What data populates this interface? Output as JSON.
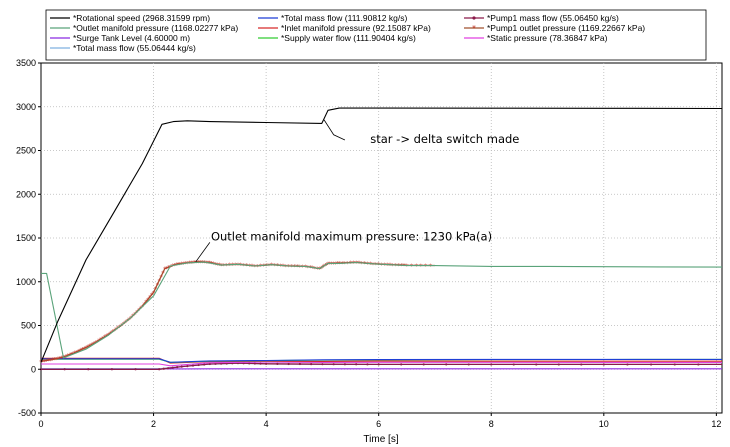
{
  "chart_data": {
    "type": "line",
    "xlabel": "Time [s]",
    "ylabel": "",
    "xlim": [
      0,
      12.1
    ],
    "ylim": [
      -500,
      3500
    ],
    "x_ticks": [
      0,
      2,
      4,
      6,
      8,
      10,
      12
    ],
    "y_ticks": [
      -500,
      0,
      500,
      1000,
      1500,
      2000,
      2500,
      3000,
      3500
    ],
    "grid": true,
    "legend_placement": "top",
    "legend": [
      {
        "label": "*Rotational speed (2968.31599 rpm)",
        "color": "#000000",
        "marker": "none"
      },
      {
        "label": "*Total mass flow (111.90812 kg/s)",
        "color": "#1f3fd6",
        "marker": "none"
      },
      {
        "label": "*Pump1 mass flow (55.06450 kg/s)",
        "color": "#8b1a4a",
        "marker": "dot"
      },
      {
        "label": "*Outlet manifold pressure (1168.02277 kPa)",
        "color": "#5aa37a",
        "marker": "none"
      },
      {
        "label": "*Inlet manifold pressure (92.15087 kPa)",
        "color": "#d62a2a",
        "marker": "none"
      },
      {
        "label": "*Pump1 outlet pressure (1169.22667 kPa)",
        "color": "#a0522d",
        "marker": "star"
      },
      {
        "label": "*Surge Tank Level (4.60000 m)",
        "color": "#8a2be2",
        "marker": "none"
      },
      {
        "label": "*Supply water flow (111.90404 kg/s)",
        "color": "#33cc33",
        "marker": "none"
      },
      {
        "label": "*Static pressure (78.36847 kPa)",
        "color": "#e040e0",
        "marker": "none"
      },
      {
        "label": "*Total mass flow (55.06444 kg/s)",
        "color": "#7fb0e0",
        "marker": "none"
      }
    ],
    "series": [
      {
        "name": "*Rotational speed (2968.31599 rpm)",
        "color": "#000000",
        "x": [
          0,
          0.3,
          0.8,
          1.3,
          1.8,
          2.15,
          2.35,
          2.6,
          3.0,
          4.0,
          4.99,
          5.02,
          5.1,
          5.3,
          6,
          8,
          10,
          12.1
        ],
        "y": [
          80,
          550,
          1250,
          1800,
          2350,
          2800,
          2830,
          2840,
          2830,
          2820,
          2810,
          2850,
          2960,
          2985,
          2985,
          2983,
          2982,
          2980
        ]
      },
      {
        "name": "*Outlet manifold pressure (1168.02277 kPa)",
        "color": "#5aa37a",
        "x": [
          0,
          0.1,
          0.4,
          0.8,
          1.2,
          1.6,
          2.0,
          2.3,
          2.6,
          2.9,
          3.2,
          3.5,
          3.8,
          4.1,
          4.4,
          4.7,
          4.95,
          5.1,
          5.3,
          5.6,
          5.9,
          6.2,
          6.5,
          7.0,
          8.0,
          9.0,
          10.0,
          11.0,
          12.1
        ],
        "y": [
          1095,
          1095,
          130,
          230,
          390,
          590,
          840,
          1180,
          1215,
          1225,
          1190,
          1200,
          1180,
          1195,
          1180,
          1175,
          1150,
          1210,
          1210,
          1220,
          1205,
          1195,
          1185,
          1185,
          1175,
          1175,
          1172,
          1170,
          1168
        ]
      },
      {
        "name": "*Pump1 outlet pressure (1169.22667 kPa)",
        "color": "#a0522d",
        "marker": "star",
        "x": [
          0,
          0.2,
          0.4,
          0.6,
          0.8,
          1.0,
          1.2,
          1.4,
          1.6,
          1.8,
          2.0,
          2.2,
          2.4,
          2.6,
          2.8,
          3.0,
          3.2,
          3.5,
          3.8,
          4.1,
          4.4,
          4.7,
          4.95,
          5.1,
          5.3,
          5.6,
          5.9,
          6.2,
          6.5,
          7.0
        ],
        "y": [
          90,
          110,
          140,
          190,
          250,
          320,
          400,
          490,
          590,
          720,
          880,
          1150,
          1200,
          1215,
          1228,
          1220,
          1190,
          1200,
          1180,
          1195,
          1180,
          1175,
          1150,
          1210,
          1212,
          1222,
          1205,
          1195,
          1188,
          1186
        ]
      },
      {
        "name": "*Total mass flow (111.90812 kg/s)",
        "color": "#1f3fd6",
        "x": [
          0,
          2.1,
          2.3,
          3.0,
          4.0,
          5.0,
          6.0,
          8.0,
          10.0,
          12.1
        ],
        "y": [
          120,
          120,
          80,
          95,
          100,
          108,
          110,
          112,
          112,
          112
        ]
      },
      {
        "name": "*Supply water flow (111.90404 kg/s)",
        "color": "#33cc33",
        "x": [
          0,
          2.1,
          2.3,
          3.0,
          4.0,
          5.0,
          6.0,
          8.0,
          10.0,
          12.1
        ],
        "y": [
          115,
          115,
          78,
          92,
          98,
          105,
          108,
          110,
          111,
          112
        ]
      },
      {
        "name": "*Inlet manifold pressure (92.15087 kPa)",
        "color": "#d62a2a",
        "x": [
          0,
          2.1,
          2.3,
          3.0,
          4.0,
          5.0,
          6.0,
          8.0,
          10.0,
          12.1
        ],
        "y": [
          125,
          125,
          70,
          88,
          92,
          90,
          93,
          92,
          92,
          92
        ]
      },
      {
        "name": "*Static pressure (78.36847 kPa)",
        "color": "#e040e0",
        "x": [
          0,
          2.1,
          2.3,
          3.0,
          4.0,
          5.0,
          6.0,
          8.0,
          10.0,
          12.1
        ],
        "y": [
          60,
          60,
          40,
          75,
          82,
          78,
          80,
          79,
          78,
          78
        ]
      },
      {
        "name": "*Pump1 mass flow (55.06450 kg/s)",
        "color": "#8b1a4a",
        "marker": "dot",
        "x": [
          0,
          2.1,
          2.5,
          3.0,
          3.5,
          4.0,
          5.0,
          6.0,
          8.0,
          10.0,
          12.1
        ],
        "y": [
          0,
          0,
          30,
          60,
          70,
          62,
          58,
          56,
          55,
          55,
          55
        ]
      },
      {
        "name": "*Total mass flow (55.06444 kg/s)",
        "color": "#7fb0e0",
        "x": [
          0,
          2.1,
          2.5,
          3.0,
          3.5,
          4.0,
          5.0,
          6.0,
          8.0,
          10.0,
          12.1
        ],
        "y": [
          5,
          5,
          32,
          58,
          68,
          60,
          57,
          55,
          55,
          55,
          55
        ]
      },
      {
        "name": "*Surge Tank Level (4.60000 m)",
        "color": "#8a2be2",
        "x": [
          0,
          2.1,
          2.5,
          3.0,
          4.0,
          6.0,
          8.0,
          10.0,
          12.1
        ],
        "y": [
          5,
          5,
          4,
          4.6,
          4.6,
          4.6,
          4.6,
          4.6,
          4.6
        ]
      }
    ],
    "annotations": [
      {
        "text": "star -> delta switch made",
        "x": 5.1,
        "y": 2810
      },
      {
        "text": "Outlet manifold maximum pressure: 1230 kPa(a)",
        "x": 2.9,
        "y": 1228
      }
    ]
  }
}
